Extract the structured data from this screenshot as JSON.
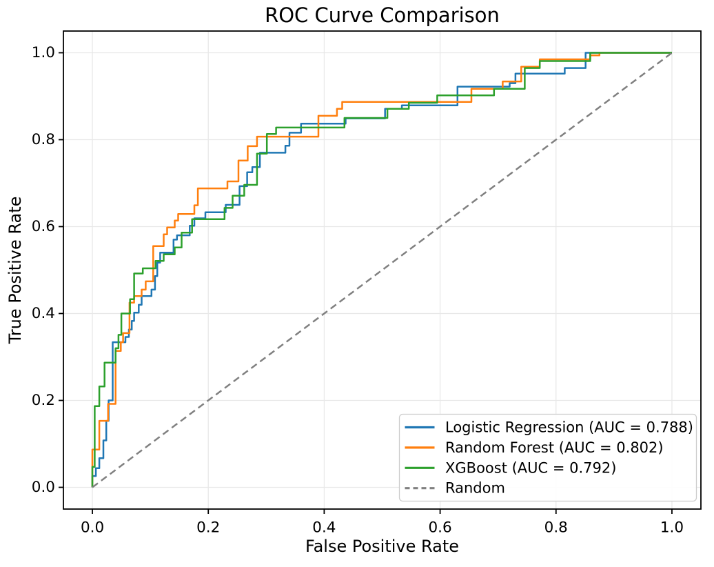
{
  "chart_data": {
    "type": "line",
    "title": "ROC Curve Comparison",
    "xlabel": "False Positive Rate",
    "ylabel": "True Positive Rate",
    "xlim": [
      -0.05,
      1.05
    ],
    "ylim": [
      -0.05,
      1.05
    ],
    "xticks": [
      0.0,
      0.2,
      0.4,
      0.6,
      0.8,
      1.0
    ],
    "yticks": [
      0.0,
      0.2,
      0.4,
      0.6,
      0.8,
      1.0
    ],
    "xtick_labels": [
      "0.0",
      "0.2",
      "0.4",
      "0.6",
      "0.8",
      "1.0"
    ],
    "ytick_labels": [
      "0.0",
      "0.2",
      "0.4",
      "0.6",
      "0.8",
      "1.0"
    ],
    "grid": true,
    "grid_color": "#e8e8e8",
    "axes_background": "#ffffff",
    "spine_color": "#000000",
    "legend_position": "lower right",
    "legend_border_color": "#cccccc",
    "series": [
      {
        "name": "Logistic Regression (AUC = 0.788)",
        "auc": 0.788,
        "color": "#1f77b4",
        "line_style": "solid",
        "line_width": 2.5,
        "points": [
          [
            0,
            0
          ],
          [
            0,
            0.026
          ],
          [
            0.006,
            0.026
          ],
          [
            0.006,
            0.044
          ],
          [
            0.012,
            0.044
          ],
          [
            0.012,
            0.067
          ],
          [
            0.019,
            0.067
          ],
          [
            0.019,
            0.108
          ],
          [
            0.024,
            0.108
          ],
          [
            0.024,
            0.153
          ],
          [
            0.028,
            0.153
          ],
          [
            0.028,
            0.2
          ],
          [
            0.035,
            0.2
          ],
          [
            0.035,
            0.334
          ],
          [
            0.057,
            0.334
          ],
          [
            0.057,
            0.346
          ],
          [
            0.063,
            0.346
          ],
          [
            0.063,
            0.363
          ],
          [
            0.068,
            0.363
          ],
          [
            0.068,
            0.383
          ],
          [
            0.072,
            0.383
          ],
          [
            0.072,
            0.402
          ],
          [
            0.08,
            0.402
          ],
          [
            0.08,
            0.42
          ],
          [
            0.085,
            0.42
          ],
          [
            0.085,
            0.44
          ],
          [
            0.102,
            0.44
          ],
          [
            0.102,
            0.455
          ],
          [
            0.108,
            0.455
          ],
          [
            0.108,
            0.486
          ],
          [
            0.112,
            0.486
          ],
          [
            0.112,
            0.517
          ],
          [
            0.117,
            0.517
          ],
          [
            0.117,
            0.54
          ],
          [
            0.14,
            0.54
          ],
          [
            0.14,
            0.57
          ],
          [
            0.146,
            0.57
          ],
          [
            0.146,
            0.58
          ],
          [
            0.168,
            0.58
          ],
          [
            0.168,
            0.602
          ],
          [
            0.176,
            0.602
          ],
          [
            0.176,
            0.619
          ],
          [
            0.195,
            0.619
          ],
          [
            0.195,
            0.633
          ],
          [
            0.23,
            0.633
          ],
          [
            0.23,
            0.65
          ],
          [
            0.254,
            0.65
          ],
          [
            0.254,
            0.693
          ],
          [
            0.267,
            0.693
          ],
          [
            0.267,
            0.725
          ],
          [
            0.276,
            0.725
          ],
          [
            0.276,
            0.737
          ],
          [
            0.289,
            0.737
          ],
          [
            0.289,
            0.77
          ],
          [
            0.333,
            0.77
          ],
          [
            0.333,
            0.786
          ],
          [
            0.34,
            0.786
          ],
          [
            0.34,
            0.816
          ],
          [
            0.36,
            0.816
          ],
          [
            0.36,
            0.837
          ],
          [
            0.437,
            0.837
          ],
          [
            0.437,
            0.849
          ],
          [
            0.505,
            0.849
          ],
          [
            0.505,
            0.871
          ],
          [
            0.534,
            0.871
          ],
          [
            0.534,
            0.879
          ],
          [
            0.63,
            0.879
          ],
          [
            0.63,
            0.922
          ],
          [
            0.72,
            0.922
          ],
          [
            0.72,
            0.93
          ],
          [
            0.73,
            0.93
          ],
          [
            0.73,
            0.952
          ],
          [
            0.815,
            0.952
          ],
          [
            0.815,
            0.965
          ],
          [
            0.851,
            0.965
          ],
          [
            0.851,
            1.0
          ],
          [
            1.0,
            1.0
          ]
        ]
      },
      {
        "name": "Random Forest (AUC = 0.802)",
        "auc": 0.802,
        "color": "#ff7f0e",
        "line_style": "solid",
        "line_width": 2.5,
        "points": [
          [
            0,
            0
          ],
          [
            0,
            0.087
          ],
          [
            0.012,
            0.087
          ],
          [
            0.012,
            0.153
          ],
          [
            0.027,
            0.153
          ],
          [
            0.027,
            0.192
          ],
          [
            0.04,
            0.192
          ],
          [
            0.04,
            0.314
          ],
          [
            0.049,
            0.314
          ],
          [
            0.049,
            0.334
          ],
          [
            0.053,
            0.334
          ],
          [
            0.053,
            0.355
          ],
          [
            0.064,
            0.355
          ],
          [
            0.064,
            0.425
          ],
          [
            0.072,
            0.425
          ],
          [
            0.072,
            0.44
          ],
          [
            0.085,
            0.44
          ],
          [
            0.085,
            0.455
          ],
          [
            0.092,
            0.455
          ],
          [
            0.092,
            0.474
          ],
          [
            0.105,
            0.474
          ],
          [
            0.105,
            0.555
          ],
          [
            0.123,
            0.555
          ],
          [
            0.123,
            0.582
          ],
          [
            0.129,
            0.582
          ],
          [
            0.129,
            0.598
          ],
          [
            0.142,
            0.598
          ],
          [
            0.142,
            0.614
          ],
          [
            0.148,
            0.614
          ],
          [
            0.148,
            0.629
          ],
          [
            0.176,
            0.629
          ],
          [
            0.176,
            0.649
          ],
          [
            0.182,
            0.649
          ],
          [
            0.182,
            0.688
          ],
          [
            0.233,
            0.688
          ],
          [
            0.233,
            0.704
          ],
          [
            0.252,
            0.704
          ],
          [
            0.252,
            0.752
          ],
          [
            0.268,
            0.752
          ],
          [
            0.268,
            0.785
          ],
          [
            0.284,
            0.785
          ],
          [
            0.284,
            0.807
          ],
          [
            0.39,
            0.807
          ],
          [
            0.39,
            0.855
          ],
          [
            0.422,
            0.855
          ],
          [
            0.422,
            0.871
          ],
          [
            0.431,
            0.871
          ],
          [
            0.431,
            0.887
          ],
          [
            0.654,
            0.887
          ],
          [
            0.654,
            0.917
          ],
          [
            0.708,
            0.917
          ],
          [
            0.708,
            0.934
          ],
          [
            0.74,
            0.934
          ],
          [
            0.74,
            0.968
          ],
          [
            0.772,
            0.968
          ],
          [
            0.772,
            0.985
          ],
          [
            0.859,
            0.985
          ],
          [
            0.859,
            0.994
          ],
          [
            0.875,
            0.994
          ],
          [
            0.875,
            1.0
          ],
          [
            1.0,
            1.0
          ]
        ]
      },
      {
        "name": "XGBoost (AUC = 0.792)",
        "auc": 0.792,
        "color": "#2ca02c",
        "line_style": "solid",
        "line_width": 2.5,
        "points": [
          [
            0,
            0
          ],
          [
            0,
            0.047
          ],
          [
            0.004,
            0.047
          ],
          [
            0.004,
            0.187
          ],
          [
            0.012,
            0.187
          ],
          [
            0.012,
            0.232
          ],
          [
            0.021,
            0.232
          ],
          [
            0.021,
            0.287
          ],
          [
            0.04,
            0.287
          ],
          [
            0.04,
            0.32
          ],
          [
            0.045,
            0.32
          ],
          [
            0.045,
            0.351
          ],
          [
            0.05,
            0.351
          ],
          [
            0.05,
            0.4
          ],
          [
            0.065,
            0.4
          ],
          [
            0.065,
            0.433
          ],
          [
            0.072,
            0.433
          ],
          [
            0.072,
            0.492
          ],
          [
            0.087,
            0.492
          ],
          [
            0.087,
            0.504
          ],
          [
            0.109,
            0.504
          ],
          [
            0.109,
            0.521
          ],
          [
            0.123,
            0.521
          ],
          [
            0.123,
            0.536
          ],
          [
            0.142,
            0.536
          ],
          [
            0.142,
            0.552
          ],
          [
            0.154,
            0.552
          ],
          [
            0.154,
            0.586
          ],
          [
            0.172,
            0.586
          ],
          [
            0.172,
            0.617
          ],
          [
            0.228,
            0.617
          ],
          [
            0.228,
            0.643
          ],
          [
            0.242,
            0.643
          ],
          [
            0.242,
            0.671
          ],
          [
            0.262,
            0.671
          ],
          [
            0.262,
            0.696
          ],
          [
            0.284,
            0.696
          ],
          [
            0.284,
            0.768
          ],
          [
            0.301,
            0.768
          ],
          [
            0.301,
            0.813
          ],
          [
            0.317,
            0.813
          ],
          [
            0.317,
            0.828
          ],
          [
            0.435,
            0.828
          ],
          [
            0.435,
            0.85
          ],
          [
            0.509,
            0.85
          ],
          [
            0.509,
            0.871
          ],
          [
            0.546,
            0.871
          ],
          [
            0.546,
            0.885
          ],
          [
            0.595,
            0.885
          ],
          [
            0.595,
            0.902
          ],
          [
            0.693,
            0.902
          ],
          [
            0.693,
            0.917
          ],
          [
            0.746,
            0.917
          ],
          [
            0.746,
            0.965
          ],
          [
            0.772,
            0.965
          ],
          [
            0.772,
            0.981
          ],
          [
            0.859,
            0.981
          ],
          [
            0.859,
            1.0
          ],
          [
            1.0,
            1.0
          ]
        ]
      },
      {
        "name": "Random",
        "color": "#808080",
        "line_style": "dashed",
        "line_width": 2.5,
        "points": [
          [
            0,
            0
          ],
          [
            1,
            1
          ]
        ]
      }
    ]
  }
}
